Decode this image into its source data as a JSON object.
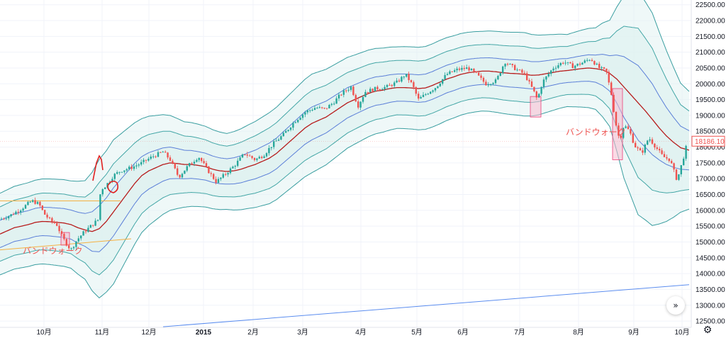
{
  "chart_data": {
    "type": "candlestick",
    "title": "",
    "xlabel": "",
    "ylabel": "",
    "ylim": [
      12300,
      22600
    ],
    "y_ticks": [
      22500,
      22000,
      21500,
      21000,
      20500,
      20000,
      19500,
      19000,
      18500,
      18000,
      17500,
      17000,
      16500,
      16000,
      15500,
      15000,
      14500,
      14000,
      13500,
      13000,
      12500
    ],
    "y_tick_labels": [
      "22500.00",
      "22000.00",
      "21500.00",
      "21000.00",
      "20500.00",
      "20000.00",
      "19500.00",
      "19000.00",
      "18500.00",
      "18000.00",
      "17500.00",
      "17000.00",
      "16500.00",
      "16000.00",
      "15500.00",
      "15000.00",
      "14500.00",
      "14000.00",
      "13500.00",
      "13000.00",
      "12500.00"
    ],
    "x_labels": [
      "10月",
      "11月",
      "12月",
      "2015",
      "2月",
      "3月",
      "4月",
      "5月",
      "6月",
      "7月",
      "8月",
      "9月",
      "10月"
    ],
    "last_price": "18186.10",
    "middle_band": [
      [
        0,
        15250
      ],
      [
        10,
        15350
      ],
      [
        20,
        15450
      ],
      [
        30,
        15500
      ],
      [
        40,
        15550
      ],
      [
        50,
        15620
      ],
      [
        60,
        15650
      ],
      [
        70,
        15640
      ],
      [
        80,
        15620
      ],
      [
        90,
        15600
      ],
      [
        100,
        15550
      ],
      [
        110,
        15450
      ],
      [
        120,
        15380
      ],
      [
        130,
        15330
      ],
      [
        140,
        15420
      ],
      [
        150,
        15650
      ],
      [
        160,
        15950
      ],
      [
        170,
        16250
      ],
      [
        180,
        16550
      ],
      [
        190,
        16850
      ],
      [
        200,
        17100
      ],
      [
        210,
        17250
      ],
      [
        220,
        17350
      ],
      [
        230,
        17450
      ],
      [
        240,
        17500
      ],
      [
        250,
        17480
      ],
      [
        260,
        17450
      ],
      [
        270,
        17450
      ],
      [
        280,
        17420
      ],
      [
        290,
        17380
      ],
      [
        300,
        17300
      ],
      [
        310,
        17250
      ],
      [
        320,
        17230
      ],
      [
        330,
        17250
      ],
      [
        340,
        17300
      ],
      [
        350,
        17380
      ],
      [
        360,
        17450
      ],
      [
        370,
        17550
      ],
      [
        380,
        17650
      ],
      [
        390,
        17800
      ],
      [
        400,
        18000
      ],
      [
        410,
        18200
      ],
      [
        420,
        18400
      ],
      [
        430,
        18600
      ],
      [
        440,
        18750
      ],
      [
        450,
        18850
      ],
      [
        460,
        18950
      ],
      [
        470,
        19100
      ],
      [
        480,
        19250
      ],
      [
        490,
        19400
      ],
      [
        500,
        19500
      ],
      [
        510,
        19600
      ],
      [
        520,
        19700
      ],
      [
        530,
        19770
      ],
      [
        540,
        19800
      ],
      [
        550,
        19850
      ],
      [
        560,
        19880
      ],
      [
        570,
        19880
      ],
      [
        580,
        19870
      ],
      [
        590,
        19850
      ],
      [
        600,
        19870
      ],
      [
        610,
        19950
      ],
      [
        620,
        20050
      ],
      [
        630,
        20150
      ],
      [
        640,
        20220
      ],
      [
        650,
        20300
      ],
      [
        660,
        20350
      ],
      [
        670,
        20380
      ],
      [
        680,
        20400
      ],
      [
        690,
        20400
      ],
      [
        700,
        20380
      ],
      [
        710,
        20350
      ],
      [
        720,
        20330
      ],
      [
        730,
        20320
      ],
      [
        740,
        20300
      ],
      [
        750,
        20270
      ],
      [
        760,
        20280
      ],
      [
        770,
        20320
      ],
      [
        780,
        20360
      ],
      [
        790,
        20400
      ],
      [
        800,
        20420
      ],
      [
        810,
        20450
      ],
      [
        820,
        20480
      ],
      [
        830,
        20500
      ],
      [
        840,
        20480
      ],
      [
        850,
        20440
      ],
      [
        860,
        20330
      ],
      [
        870,
        20150
      ],
      [
        880,
        19900
      ],
      [
        890,
        19650
      ],
      [
        900,
        19400
      ],
      [
        910,
        19150
      ],
      [
        920,
        18880
      ],
      [
        930,
        18600
      ],
      [
        940,
        18350
      ],
      [
        950,
        18150
      ],
      [
        960,
        17980
      ],
      [
        972,
        17900
      ]
    ],
    "bb1_width": [
      [
        0,
        430
      ],
      [
        100,
        460
      ],
      [
        120,
        520
      ],
      [
        140,
        730
      ],
      [
        160,
        760
      ],
      [
        200,
        600
      ],
      [
        260,
        450
      ],
      [
        320,
        400
      ],
      [
        380,
        480
      ],
      [
        440,
        520
      ],
      [
        500,
        470
      ],
      [
        560,
        430
      ],
      [
        620,
        440
      ],
      [
        680,
        420
      ],
      [
        740,
        440
      ],
      [
        800,
        380
      ],
      [
        840,
        430
      ],
      [
        860,
        560
      ],
      [
        880,
        960
      ],
      [
        900,
        1180
      ],
      [
        920,
        1120
      ],
      [
        940,
        900
      ],
      [
        960,
        680
      ],
      [
        972,
        620
      ]
    ],
    "bb2_width": [
      [
        0,
        860
      ],
      [
        100,
        920
      ],
      [
        120,
        1040
      ],
      [
        140,
        1460
      ],
      [
        160,
        1520
      ],
      [
        200,
        1200
      ],
      [
        260,
        900
      ],
      [
        320,
        800
      ],
      [
        380,
        960
      ],
      [
        440,
        1040
      ],
      [
        500,
        940
      ],
      [
        560,
        860
      ],
      [
        620,
        880
      ],
      [
        680,
        840
      ],
      [
        740,
        880
      ],
      [
        800,
        760
      ],
      [
        840,
        860
      ],
      [
        860,
        1120
      ],
      [
        880,
        1920
      ],
      [
        900,
        2360
      ],
      [
        920,
        2240
      ],
      [
        940,
        1800
      ],
      [
        960,
        1360
      ],
      [
        972,
        1240
      ]
    ],
    "bb3_width": [
      [
        0,
        1290
      ],
      [
        100,
        1380
      ],
      [
        120,
        1560
      ],
      [
        140,
        2190
      ],
      [
        160,
        2280
      ],
      [
        200,
        1800
      ],
      [
        260,
        1350
      ],
      [
        320,
        1200
      ],
      [
        380,
        1440
      ],
      [
        440,
        1560
      ],
      [
        500,
        1410
      ],
      [
        560,
        1290
      ],
      [
        620,
        1320
      ],
      [
        680,
        1260
      ],
      [
        740,
        1320
      ],
      [
        800,
        1140
      ],
      [
        840,
        1290
      ],
      [
        860,
        1680
      ],
      [
        880,
        2880
      ],
      [
        900,
        3540
      ],
      [
        920,
        3360
      ],
      [
        940,
        2700
      ],
      [
        960,
        2040
      ],
      [
        972,
        1860
      ]
    ],
    "candle_path": [
      [
        0,
        15720
      ],
      [
        15,
        15850
      ],
      [
        30,
        16050
      ],
      [
        45,
        16300
      ],
      [
        55,
        16200
      ],
      [
        62,
        15900
      ],
      [
        70,
        15700
      ],
      [
        80,
        15550
      ],
      [
        88,
        15150
      ],
      [
        95,
        14900
      ],
      [
        100,
        14750
      ],
      [
        108,
        15050
      ],
      [
        118,
        15300
      ],
      [
        128,
        15500
      ],
      [
        138,
        15700
      ],
      [
        142,
        16650
      ],
      [
        150,
        16800
      ],
      [
        160,
        17100
      ],
      [
        170,
        17250
      ],
      [
        185,
        17350
      ],
      [
        200,
        17500
      ],
      [
        215,
        17700
      ],
      [
        230,
        17850
      ],
      [
        240,
        17600
      ],
      [
        252,
        17050
      ],
      [
        265,
        17400
      ],
      [
        280,
        17700
      ],
      [
        292,
        17300
      ],
      [
        305,
        16900
      ],
      [
        318,
        17150
      ],
      [
        330,
        17400
      ],
      [
        345,
        17800
      ],
      [
        360,
        17600
      ],
      [
        372,
        17750
      ],
      [
        385,
        18100
      ],
      [
        400,
        18400
      ],
      [
        415,
        18800
      ],
      [
        430,
        19100
      ],
      [
        445,
        19250
      ],
      [
        458,
        19200
      ],
      [
        470,
        19400
      ],
      [
        482,
        19700
      ],
      [
        495,
        19900
      ],
      [
        505,
        19300
      ],
      [
        515,
        19750
      ],
      [
        530,
        19850
      ],
      [
        545,
        19900
      ],
      [
        560,
        20050
      ],
      [
        572,
        20300
      ],
      [
        582,
        19950
      ],
      [
        590,
        19500
      ],
      [
        602,
        19700
      ],
      [
        615,
        19900
      ],
      [
        630,
        20300
      ],
      [
        645,
        20450
      ],
      [
        660,
        20500
      ],
      [
        672,
        20300
      ],
      [
        685,
        20000
      ],
      [
        700,
        20100
      ],
      [
        712,
        20700
      ],
      [
        725,
        20500
      ],
      [
        740,
        20300
      ],
      [
        752,
        19800
      ],
      [
        758,
        19500
      ],
      [
        765,
        20050
      ],
      [
        780,
        20500
      ],
      [
        795,
        20700
      ],
      [
        808,
        20550
      ],
      [
        820,
        20650
      ],
      [
        833,
        20800
      ],
      [
        845,
        20500
      ],
      [
        855,
        20400
      ],
      [
        862,
        19700
      ],
      [
        868,
        18800
      ],
      [
        874,
        18200
      ],
      [
        880,
        18700
      ],
      [
        888,
        18500
      ],
      [
        895,
        18050
      ],
      [
        905,
        17800
      ],
      [
        915,
        18300
      ],
      [
        925,
        18000
      ],
      [
        935,
        17700
      ],
      [
        945,
        17600
      ],
      [
        955,
        16950
      ],
      [
        962,
        17500
      ],
      [
        970,
        18186
      ]
    ],
    "shaded_boxes": [
      {
        "x0": 86,
        "x1": 98,
        "y0": 14900,
        "y1": 15300,
        "label": ""
      },
      {
        "x0": 748,
        "x1": 763,
        "y0": 18950,
        "y1": 19600,
        "label": ""
      },
      {
        "x0": 864,
        "x1": 878,
        "y0": 17600,
        "y1": 19850,
        "label": ""
      }
    ],
    "trendlines": [
      {
        "x0": 0,
        "y0": 16300,
        "x1": 170,
        "y1": 16300,
        "color": "#f5b041"
      },
      {
        "x0": 0,
        "y0": 14750,
        "x1": 185,
        "y1": 15100,
        "color": "#f5b041"
      },
      {
        "x0": 230,
        "y0": 12320,
        "x1": 972,
        "y1": 13650,
        "color": "#5b8def"
      }
    ],
    "annotations": [
      {
        "text": "バンドウォーク",
        "x": 32,
        "y": 14630
      },
      {
        "text": "バンドウォーク",
        "x": 798,
        "y": 18380
      }
    ],
    "colors": {
      "up": "#26a69a",
      "down": "#ef5350",
      "middle": "#b71c1c",
      "band1": "#5b7fd8",
      "band2": "#43a6a6",
      "band3": "#3a9ea0",
      "fill": "#e0f2f1",
      "box": "#f8bbd0",
      "trend_orange": "#f5b041",
      "trend_blue": "#5b8def"
    }
  },
  "ui": {
    "scroll_icon": "»",
    "settings_icon": "⚙"
  }
}
